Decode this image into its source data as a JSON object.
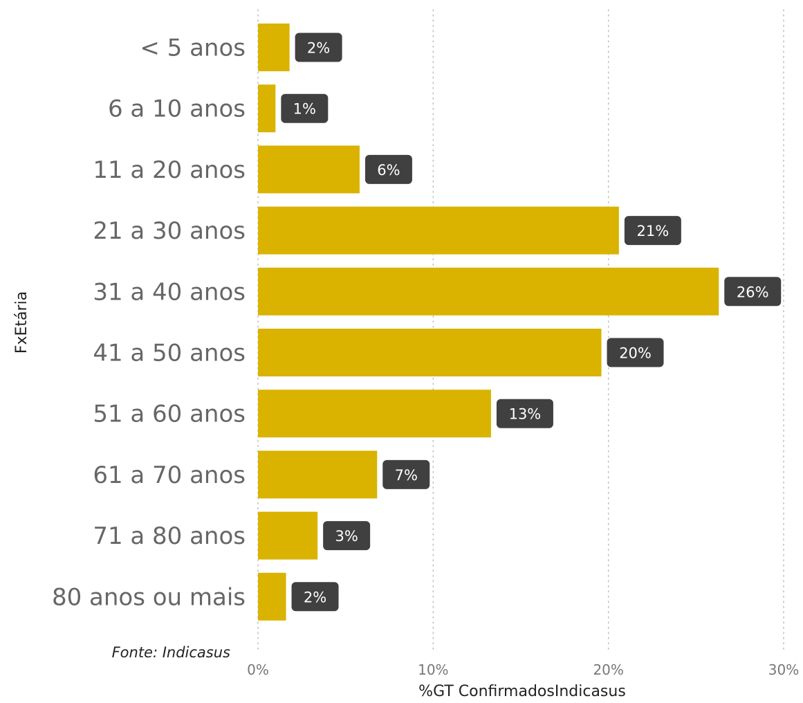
{
  "chart_data": {
    "type": "bar",
    "orientation": "horizontal",
    "categories": [
      "< 5 anos",
      "6 a 10 anos",
      "11 a 20 anos",
      "21 a 30 anos",
      "31 a 40 anos",
      "41 a 50 anos",
      "51 a 60 anos",
      "61 a 70 anos",
      "71 a 80 anos",
      "80 anos ou mais"
    ],
    "values": [
      1.8,
      1.0,
      5.8,
      20.6,
      26.3,
      19.6,
      13.3,
      6.8,
      3.4,
      1.6
    ],
    "data_labels": [
      "2%",
      "1%",
      "6%",
      "21%",
      "26%",
      "20%",
      "13%",
      "7%",
      "3%",
      "2%"
    ],
    "xlabel": "%GT ConfirmadosIndicasus",
    "ylabel": "FxEtária",
    "xlim": [
      0,
      30
    ],
    "x_ticks": [
      0,
      10,
      20,
      30
    ],
    "x_tick_labels": [
      "0%",
      "10%",
      "20%",
      "30%"
    ],
    "grid": "vertical dotted",
    "colors": {
      "bar": "#D9B300",
      "label_bg": "#404040",
      "label_text": "#FFFFFF"
    }
  },
  "source": "Fonte: Indicasus"
}
